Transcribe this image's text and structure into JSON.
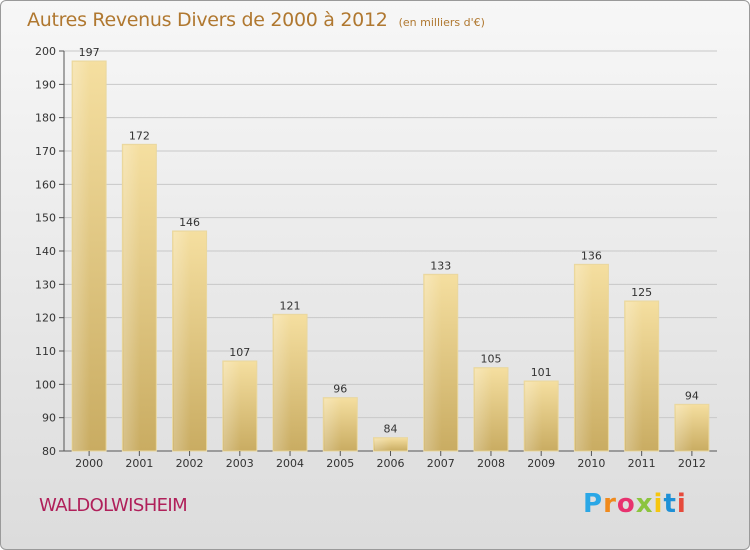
{
  "header": {
    "title": "Autres Revenus Divers de 2000 à 2012",
    "unit_note": "(en milliers d'€)"
  },
  "footer": {
    "commune": "WALDOLWISHEIM",
    "logo_text": "Proxiti"
  },
  "colors": {
    "title": "#b07830",
    "commune": "#b0205a",
    "bar_light": "#f5dfa0",
    "bar_dark": "#c9ac62",
    "grid": "#c8c8c8",
    "axis": "#555555"
  },
  "chart_data": {
    "type": "bar",
    "categories": [
      "2000",
      "2001",
      "2002",
      "2003",
      "2004",
      "2005",
      "2006",
      "2007",
      "2008",
      "2009",
      "2010",
      "2011",
      "2012"
    ],
    "values": [
      197,
      172,
      146,
      107,
      121,
      96,
      84,
      133,
      105,
      101,
      136,
      125,
      94
    ],
    "ylim": [
      80,
      200
    ],
    "yticks": [
      80,
      90,
      100,
      110,
      120,
      130,
      140,
      150,
      160,
      170,
      180,
      190,
      200
    ],
    "grid": true,
    "data_labels": true,
    "title": "Autres Revenus Divers de 2000 à 2012"
  }
}
